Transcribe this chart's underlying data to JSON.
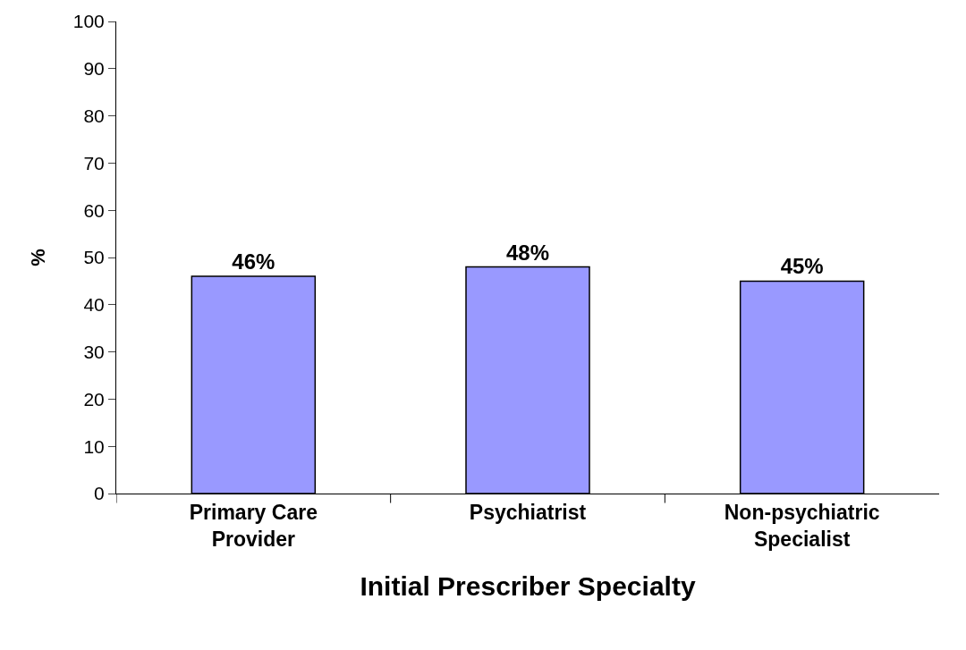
{
  "chart_data": {
    "type": "bar",
    "xlabel": "Initial Prescriber Specialty",
    "ylabel": "%",
    "categories": [
      "Primary Care Provider",
      "Psychiatrist",
      "Non-psychiatric Specialist"
    ],
    "values": [
      46,
      48,
      45
    ],
    "value_labels": [
      "46%",
      "48%",
      "45%"
    ],
    "color": "#9999ff",
    "ylim": [
      0,
      100
    ],
    "yticks": [
      0,
      10,
      20,
      30,
      40,
      50,
      60,
      70,
      80,
      90,
      100
    ],
    "legend": false
  }
}
